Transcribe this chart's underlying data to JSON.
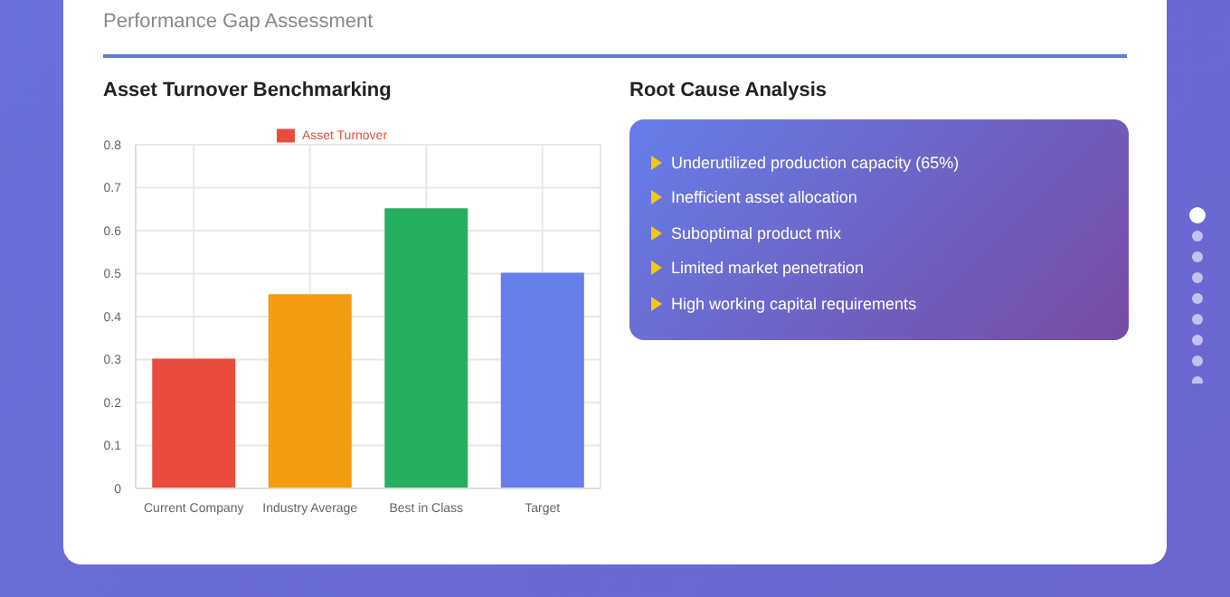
{
  "chart_data": [
    {
      "type": "other",
      "title": "Performance Gap Assessment"
    },
    {
      "type": "bar",
      "title": "Asset Turnover Benchmarking",
      "categories": [
        "Current Company",
        "Industry Average",
        "Best in Class",
        "Target"
      ],
      "series": [
        {
          "name": "Asset Turnover",
          "color": "#e74c3c",
          "colors": [
            "#e74c3c",
            "#f39c12",
            "#27ae60",
            "#667eea"
          ],
          "values": [
            0.3,
            0.45,
            0.65,
            0.5
          ]
        }
      ],
      "ylim": [
        0,
        0.8
      ],
      "yticks": [
        0,
        0.1,
        0.2,
        0.3,
        0.4,
        0.5,
        0.6,
        0.7,
        0.8
      ],
      "grid": true,
      "legend": "top"
    },
    {
      "type": "other",
      "title": "Root Cause Analysis",
      "annotations": [
        "Underutilized production capacity (65%)",
        "Inefficient asset allocation",
        "Suboptimal product mix",
        "Limited market penetration",
        "High working capital requirements"
      ]
    }
  ]
}
